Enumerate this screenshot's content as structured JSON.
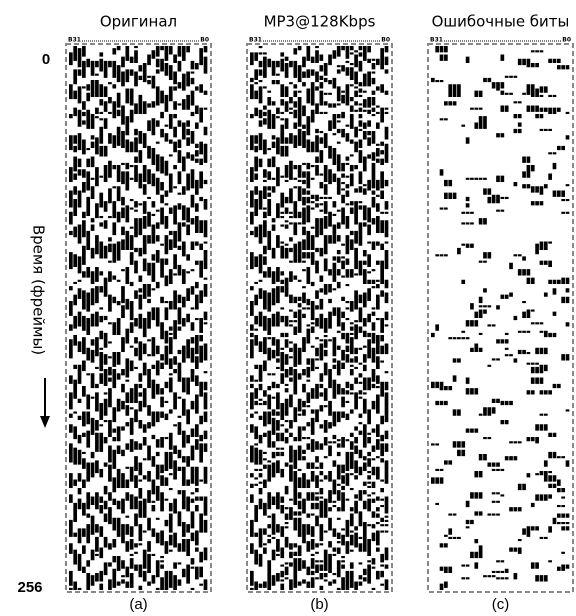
{
  "panels": [
    {
      "title": "Оригинал",
      "label": "(a)",
      "bit_high": "B31",
      "bit_low": "B0"
    },
    {
      "title": "MP3@128Kbps",
      "label": "(b)",
      "bit_high": "B31",
      "bit_low": "B0"
    },
    {
      "title": "Ошибочные биты",
      "label": "(c)",
      "bit_high": "B31",
      "bit_low": "B0"
    }
  ],
  "y_axis": {
    "start": "0",
    "end": "256",
    "label": "Время (фреймы)"
  }
}
